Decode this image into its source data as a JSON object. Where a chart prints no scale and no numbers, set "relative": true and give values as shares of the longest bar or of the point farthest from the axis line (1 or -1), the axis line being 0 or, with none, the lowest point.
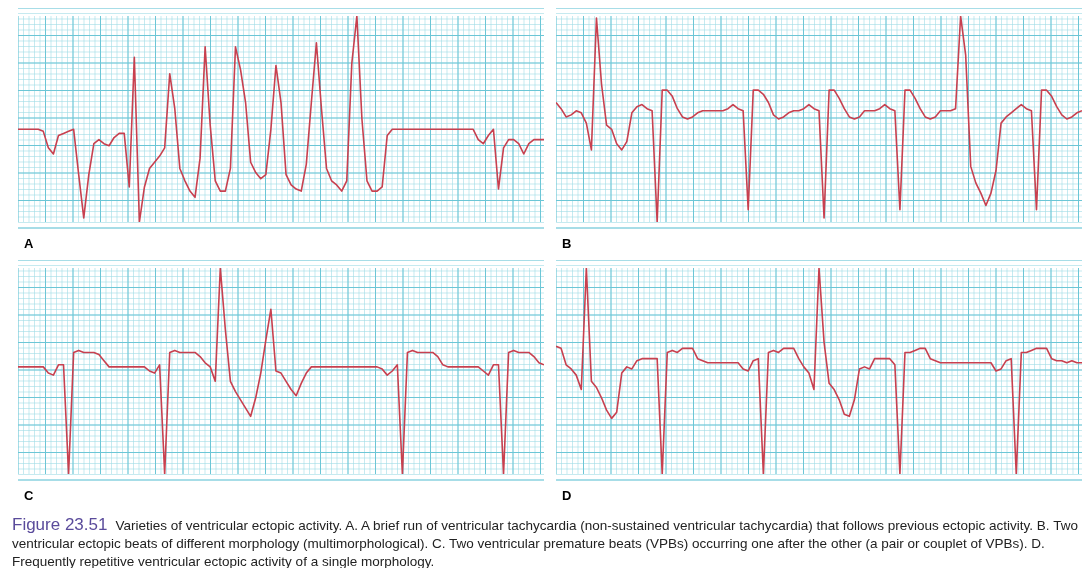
{
  "chart_data": [
    {
      "type": "line",
      "title": "A",
      "relative": true,
      "grid": true,
      "categories": [
        null,
        null,
        null,
        null,
        null,
        null,
        null,
        null,
        null,
        null,
        null,
        null,
        null,
        null,
        null,
        null,
        null,
        null,
        null,
        null,
        null,
        null,
        null,
        null,
        null,
        null,
        null,
        null,
        null,
        null,
        null,
        null,
        null,
        null,
        null,
        null,
        null,
        null,
        null,
        null,
        null,
        null,
        null,
        null,
        null,
        null,
        null,
        null,
        null,
        null,
        null,
        null,
        null,
        null,
        null,
        null,
        null,
        null,
        null,
        null,
        null,
        null,
        null,
        null,
        null,
        null,
        null,
        null,
        null,
        null,
        null,
        null,
        null,
        null,
        null,
        null,
        null,
        null,
        null,
        null,
        null,
        null,
        null,
        null,
        null,
        null,
        null,
        null,
        null,
        null,
        null,
        null,
        null,
        null,
        null,
        null,
        null,
        null,
        null,
        null,
        null,
        null,
        null,
        null,
        null
      ],
      "series": [
        {
          "color": "#c8404f",
          "values": [
            0.45,
            0.45,
            0.45,
            0.45,
            0.45,
            0.44,
            0.36,
            0.33,
            0.42,
            0.43,
            0.44,
            0.45,
            0.23,
            0.02,
            0.23,
            0.38,
            0.4,
            0.38,
            0.37,
            0.41,
            0.43,
            0.43,
            0.17,
            0.8,
            0,
            0.17,
            0.26,
            0.29,
            0.32,
            0.36,
            0.72,
            0.55,
            0.26,
            0.2,
            0.15,
            0.12,
            0.31,
            0.85,
            0.47,
            0.2,
            0.15,
            0.15,
            0.26,
            0.85,
            0.74,
            0.58,
            0.29,
            0.24,
            0.21,
            0.23,
            0.45,
            0.76,
            0.58,
            0.23,
            0.18,
            0.16,
            0.15,
            0.28,
            0.58,
            0.87,
            0.55,
            0.26,
            0.2,
            0.18,
            0.15,
            0.2,
            0.77,
            1,
            0.5,
            0.2,
            0.15,
            0.15,
            0.17,
            0.42,
            0.45,
            0.45,
            0.45,
            0.45,
            0.45,
            0.45,
            0.45,
            0.45,
            0.45,
            0.45,
            0.45,
            0.45,
            0.45,
            0.45,
            0.45,
            0.45,
            0.45,
            0.4,
            0.38,
            0.42,
            0.45,
            0.16,
            0.36,
            0.4,
            0.4,
            0.38,
            0.33,
            0.38,
            0.4,
            0.4,
            0.4
          ]
        }
      ]
    },
    {
      "type": "line",
      "title": "B",
      "relative": true,
      "grid": true,
      "categories": [
        null,
        null,
        null,
        null,
        null,
        null,
        null,
        null,
        null,
        null,
        null,
        null,
        null,
        null,
        null,
        null,
        null,
        null,
        null,
        null,
        null,
        null,
        null,
        null,
        null,
        null,
        null,
        null,
        null,
        null,
        null,
        null,
        null,
        null,
        null,
        null,
        null,
        null,
        null,
        null,
        null,
        null,
        null,
        null,
        null,
        null,
        null,
        null,
        null,
        null,
        null,
        null,
        null,
        null,
        null,
        null,
        null,
        null,
        null,
        null,
        null,
        null,
        null,
        null,
        null,
        null,
        null,
        null,
        null,
        null,
        null,
        null,
        null,
        null,
        null,
        null,
        null,
        null,
        null,
        null,
        null,
        null,
        null,
        null,
        null,
        null,
        null,
        null,
        null,
        null,
        null,
        null,
        null,
        null,
        null,
        null,
        null,
        null,
        null,
        null,
        null,
        null,
        null,
        null,
        null
      ],
      "series": [
        {
          "color": "#c8404f",
          "values": [
            0.58,
            0.55,
            0.51,
            0.52,
            0.54,
            0.53,
            0.48,
            0.35,
            0.99,
            0.67,
            0.47,
            0.45,
            0.38,
            0.35,
            0.39,
            0.53,
            0.56,
            0.57,
            0.55,
            0.54,
            0,
            0.64,
            0.64,
            0.61,
            0.55,
            0.51,
            0.5,
            0.51,
            0.53,
            0.54,
            0.54,
            0.54,
            0.54,
            0.54,
            0.55,
            0.57,
            0.55,
            0.54,
            0.06,
            0.64,
            0.64,
            0.62,
            0.58,
            0.52,
            0.5,
            0.51,
            0.53,
            0.54,
            0.54,
            0.55,
            0.57,
            0.55,
            0.54,
            0.02,
            0.64,
            0.64,
            0.6,
            0.55,
            0.51,
            0.5,
            0.51,
            0.54,
            0.54,
            0.54,
            0.55,
            0.57,
            0.55,
            0.54,
            0.06,
            0.64,
            0.64,
            0.6,
            0.55,
            0.51,
            0.5,
            0.51,
            0.54,
            0.54,
            0.54,
            0.55,
            1,
            0.81,
            0.27,
            0.19,
            0.14,
            0.08,
            0.14,
            0.25,
            0.48,
            0.51,
            0.53,
            0.55,
            0.57,
            0.55,
            0.54,
            0.06,
            0.64,
            0.64,
            0.61,
            0.56,
            0.52,
            0.5,
            0.51,
            0.53,
            0.54
          ]
        }
      ]
    },
    {
      "type": "line",
      "title": "C",
      "relative": true,
      "grid": true,
      "categories": [
        null,
        null,
        null,
        null,
        null,
        null,
        null,
        null,
        null,
        null,
        null,
        null,
        null,
        null,
        null,
        null,
        null,
        null,
        null,
        null,
        null,
        null,
        null,
        null,
        null,
        null,
        null,
        null,
        null,
        null,
        null,
        null,
        null,
        null,
        null,
        null,
        null,
        null,
        null,
        null,
        null,
        null,
        null,
        null,
        null,
        null,
        null,
        null,
        null,
        null,
        null,
        null,
        null,
        null,
        null,
        null,
        null,
        null,
        null,
        null,
        null,
        null,
        null,
        null,
        null,
        null,
        null,
        null,
        null,
        null,
        null,
        null,
        null,
        null,
        null,
        null,
        null,
        null,
        null,
        null,
        null,
        null,
        null,
        null,
        null,
        null,
        null,
        null,
        null,
        null,
        null,
        null,
        null,
        null,
        null,
        null,
        null,
        null,
        null,
        null,
        null,
        null,
        null,
        null,
        null
      ],
      "series": [
        {
          "color": "#c8404f",
          "values": [
            0.52,
            0.52,
            0.52,
            0.52,
            0.52,
            0.52,
            0.49,
            0.48,
            0.53,
            0.53,
            0,
            0.59,
            0.6,
            0.59,
            0.59,
            0.59,
            0.58,
            0.55,
            0.52,
            0.52,
            0.52,
            0.52,
            0.52,
            0.52,
            0.52,
            0.52,
            0.5,
            0.49,
            0.53,
            0,
            0.59,
            0.6,
            0.59,
            0.59,
            0.59,
            0.59,
            0.57,
            0.54,
            0.52,
            0.45,
            1,
            0.7,
            0.45,
            0.4,
            0.36,
            0.32,
            0.28,
            0.37,
            0.49,
            0.65,
            0.8,
            0.5,
            0.49,
            0.45,
            0.41,
            0.38,
            0.44,
            0.49,
            0.52,
            0.52,
            0.52,
            0.52,
            0.52,
            0.52,
            0.52,
            0.52,
            0.52,
            0.52,
            0.52,
            0.52,
            0.52,
            0.52,
            0.51,
            0.48,
            0.5,
            0.53,
            0,
            0.59,
            0.6,
            0.59,
            0.59,
            0.59,
            0.59,
            0.57,
            0.53,
            0.52,
            0.52,
            0.52,
            0.52,
            0.52,
            0.52,
            0.52,
            0.5,
            0.48,
            0.53,
            0.53,
            0,
            0.59,
            0.6,
            0.59,
            0.59,
            0.59,
            0.57,
            0.54,
            0.53
          ]
        }
      ]
    },
    {
      "type": "line",
      "title": "D",
      "relative": true,
      "grid": true,
      "categories": [
        null,
        null,
        null,
        null,
        null,
        null,
        null,
        null,
        null,
        null,
        null,
        null,
        null,
        null,
        null,
        null,
        null,
        null,
        null,
        null,
        null,
        null,
        null,
        null,
        null,
        null,
        null,
        null,
        null,
        null,
        null,
        null,
        null,
        null,
        null,
        null,
        null,
        null,
        null,
        null,
        null,
        null,
        null,
        null,
        null,
        null,
        null,
        null,
        null,
        null,
        null,
        null,
        null,
        null,
        null,
        null,
        null,
        null,
        null,
        null,
        null,
        null,
        null,
        null,
        null,
        null,
        null,
        null,
        null,
        null,
        null,
        null,
        null,
        null,
        null,
        null,
        null,
        null,
        null,
        null,
        null,
        null,
        null,
        null,
        null,
        null,
        null,
        null,
        null,
        null,
        null,
        null,
        null,
        null,
        null,
        null,
        null,
        null,
        null,
        null,
        null,
        null,
        null,
        null,
        null
      ],
      "series": [
        {
          "color": "#c8404f",
          "values": [
            0.62,
            0.61,
            0.53,
            0.51,
            0.48,
            0.41,
            1,
            0.45,
            0.42,
            0.37,
            0.31,
            0.27,
            0.3,
            0.49,
            0.52,
            0.51,
            0.55,
            0.56,
            0.56,
            0.56,
            0.56,
            0,
            0.59,
            0.6,
            0.59,
            0.61,
            0.61,
            0.61,
            0.56,
            0.55,
            0.54,
            0.54,
            0.54,
            0.54,
            0.54,
            0.54,
            0.54,
            0.51,
            0.5,
            0.55,
            0.56,
            0,
            0.59,
            0.6,
            0.59,
            0.61,
            0.61,
            0.61,
            0.56,
            0.52,
            0.49,
            0.41,
            1,
            0.64,
            0.44,
            0.41,
            0.36,
            0.29,
            0.28,
            0.36,
            0.51,
            0.52,
            0.51,
            0.56,
            0.56,
            0.56,
            0.56,
            0.53,
            0,
            0.59,
            0.59,
            0.6,
            0.61,
            0.61,
            0.56,
            0.55,
            0.54,
            0.54,
            0.54,
            0.54,
            0.54,
            0.54,
            0.54,
            0.54,
            0.54,
            0.54,
            0.54,
            0.5,
            0.51,
            0.55,
            0.56,
            0,
            0.59,
            0.59,
            0.6,
            0.61,
            0.61,
            0.61,
            0.56,
            0.55,
            0.55,
            0.54,
            0.55,
            0.54,
            0.54
          ]
        }
      ],
      "annotations": [
        "Figure 23.51",
        "Varieties of ventricular ectopic activity. A. A brief run of ventricular tachycardia (non-sustained ventricular tachycardia) that follows previous ectopic activity. B. Two ventricular ectopic beats of different morphology (multimorphological). C. Two ventricular premature beats (VPBs) occurring one after the other (a pair or couplet of VPBs). D. Frequently repetitive ventricular ectopic activity of a single morphology."
      ]
    }
  ]
}
